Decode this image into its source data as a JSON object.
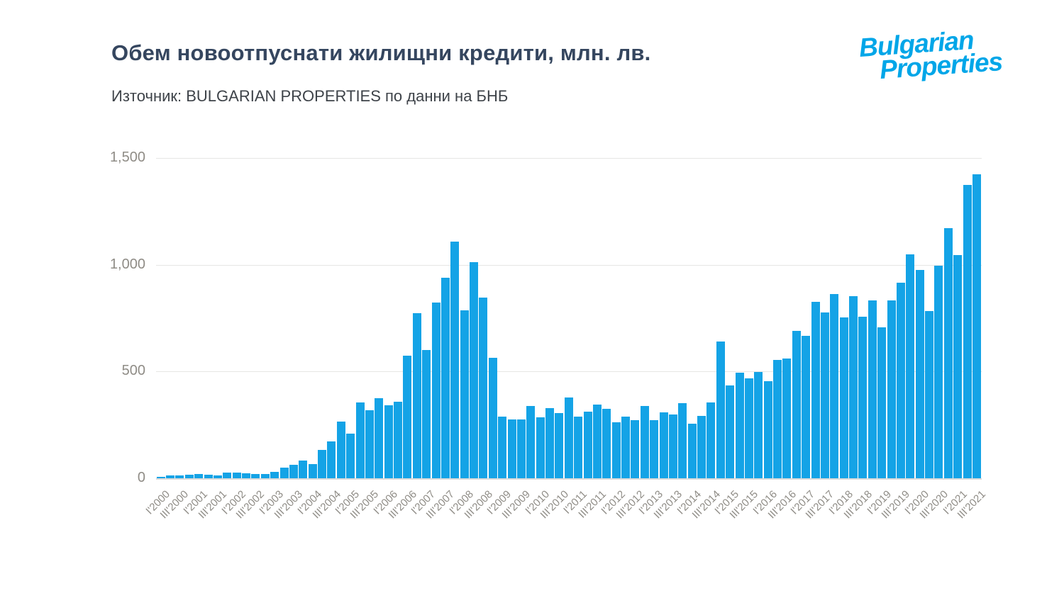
{
  "header": {
    "title": "Обем новоотпуснати жилищни кредити, млн. лв.",
    "subtitle": "Източник: BULGARIAN PROPERTIES по данни на БНБ"
  },
  "logo": {
    "line1": "Bulgarian",
    "line2": "Properties",
    "color": "#00a6e8"
  },
  "chart_data": {
    "type": "bar",
    "title": "Обем новоотпуснати жилищни кредити, млн. лв.",
    "unit": "млн. лв.",
    "bar_color": "#14a3e6",
    "grid": true,
    "ylim": [
      0,
      1500
    ],
    "y_ticks": [
      {
        "label": "0",
        "value": 0
      },
      {
        "label": "500",
        "value": 500
      },
      {
        "label": "1,000",
        "value": 1000
      },
      {
        "label": "1,500",
        "value": 1500
      }
    ],
    "x_tick_every_n_bars": 2,
    "x_tick_labels": [
      "I'2000",
      "III'2000",
      "I'2001",
      "III'2001",
      "I'2002",
      "III'2002",
      "I'2003",
      "III'2003",
      "I'2004",
      "III'2004",
      "I'2005",
      "III'2005",
      "I'2006",
      "III'2006",
      "I'2007",
      "III'2007",
      "I'2008",
      "III'2008",
      "I'2009",
      "III'2009",
      "I'2010",
      "III'2010",
      "I'2011",
      "III'2011",
      "I'2012",
      "III'2012",
      "I'2013",
      "III'2013",
      "I'2014",
      "III'2014",
      "I'2015",
      "III'2015",
      "I'2016",
      "III'2016",
      "I'2017",
      "III'2017",
      "I'2018",
      "III'2018",
      "I'2019",
      "III'2019",
      "I'2020",
      "III'2020",
      "I'2021",
      "III'2021"
    ],
    "values": [
      8,
      14,
      14,
      17,
      19,
      17,
      14,
      25,
      25,
      23,
      19,
      20,
      31,
      50,
      63,
      83,
      66,
      133,
      173,
      265,
      210,
      354,
      317,
      376,
      343,
      357,
      575,
      774,
      601,
      824,
      940,
      1108,
      785,
      1011,
      847,
      564,
      290,
      277,
      274,
      337,
      284,
      328,
      306,
      379,
      288,
      313,
      346,
      325,
      262,
      290,
      271,
      337,
      271,
      310,
      299,
      351,
      254,
      293,
      355,
      641,
      434,
      494,
      468,
      498,
      456,
      553,
      561,
      689,
      666,
      826,
      777,
      863,
      752,
      852,
      758,
      833,
      708,
      833,
      915,
      1048,
      977,
      783,
      995,
      1172,
      1045,
      1373,
      1423
    ]
  }
}
